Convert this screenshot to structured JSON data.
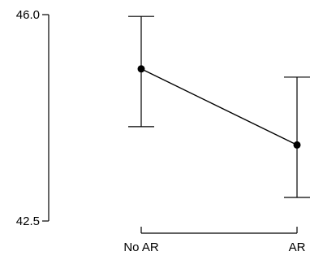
{
  "chart_data": {
    "type": "line",
    "title": "",
    "xlabel": "",
    "ylabel": "",
    "categories": [
      "No AR",
      "AR"
    ],
    "series": [
      {
        "values": [
          45.08,
          43.79
        ],
        "error_low": [
          44.1,
          42.9
        ],
        "error_high": [
          45.97,
          44.94
        ]
      }
    ],
    "yticks": [
      "46.0",
      "42.5"
    ],
    "ylim": [
      42.5,
      46.0
    ],
    "grid": false,
    "legend": "none",
    "colors": {
      "line": "#000000",
      "point": "#000000",
      "axis": "#000000"
    }
  }
}
